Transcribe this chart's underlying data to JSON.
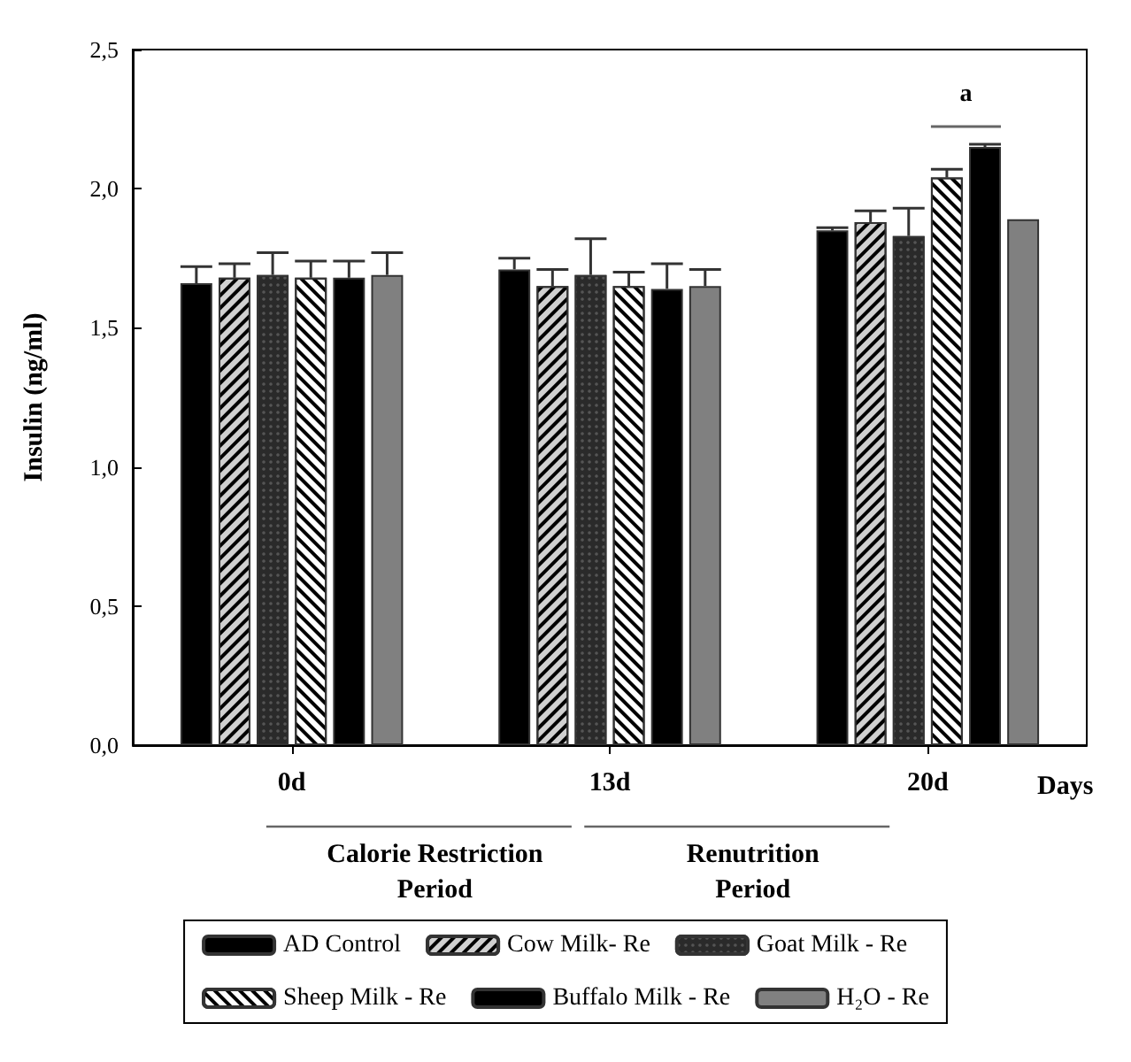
{
  "chart_data": {
    "type": "bar",
    "xlabel": "Days",
    "ylabel": "Insulin (ng/ml)",
    "categories": [
      "0d",
      "13d",
      "20d"
    ],
    "ylim": [
      0,
      2.5
    ],
    "yticks": [
      {
        "value": 0,
        "label": "0,0"
      },
      {
        "value": 0.5,
        "label": "0,5"
      },
      {
        "value": 1,
        "label": "1,0"
      },
      {
        "value": 1.5,
        "label": "1,5"
      },
      {
        "value": 2,
        "label": "2,0"
      },
      {
        "value": 2.5,
        "label": "2,5"
      }
    ],
    "grid": false,
    "legend": "bottom",
    "series": [
      {
        "name": "AD Control",
        "color": "#000000",
        "values": [
          1.66,
          1.71,
          1.85
        ],
        "errors": [
          [
            1.66,
            1.72
          ],
          [
            1.71,
            1.75
          ],
          [
            1.85,
            1.86
          ]
        ]
      },
      {
        "name": "Cow Milk- Re",
        "color": "#d0d0d0",
        "values": [
          1.68,
          1.65,
          1.88
        ],
        "errors": [
          [
            1.68,
            1.73
          ],
          [
            1.65,
            1.71
          ],
          [
            1.88,
            1.92
          ]
        ]
      },
      {
        "name": "Goat Milk - Re",
        "color": "#2a2a2a",
        "values": [
          1.69,
          1.69,
          1.83
        ],
        "errors": [
          [
            1.69,
            1.77
          ],
          [
            1.69,
            1.82
          ],
          [
            1.83,
            1.93
          ]
        ]
      },
      {
        "name": "Sheep Milk - Re",
        "color": "#ffffff",
        "values": [
          1.68,
          1.65,
          2.04
        ],
        "errors": [
          [
            1.68,
            1.74
          ],
          [
            1.65,
            1.7
          ],
          [
            2.04,
            2.07
          ]
        ]
      },
      {
        "name": "Buffalo Milk - Re",
        "color": "#000000",
        "values": [
          1.68,
          1.64,
          2.15
        ],
        "errors": [
          [
            1.68,
            1.74
          ],
          [
            1.64,
            1.73
          ],
          [
            2.15,
            2.16
          ]
        ]
      },
      {
        "name": "H₂O - Re",
        "color": "#808080",
        "values": [
          1.69,
          1.65,
          1.89
        ],
        "errors": [
          [
            1.69,
            1.77
          ],
          [
            1.65,
            1.71
          ],
          null
        ]
      }
    ],
    "annotations": [
      "a",
      "Calorie Restriction\nPeriod",
      "Renutrition\nPeriod"
    ]
  }
}
